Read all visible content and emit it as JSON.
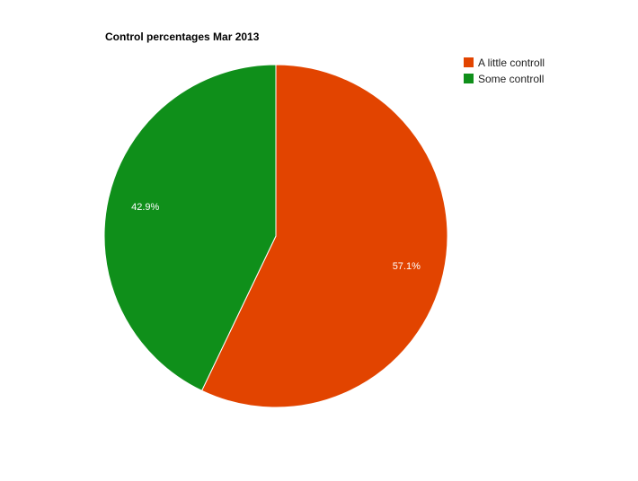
{
  "chart_data": {
    "type": "pie",
    "title": "Control percentages Mar 2013",
    "slices": [
      {
        "label": "A little controll",
        "value": 57.1,
        "display": "57.1%",
        "color": "#e24400"
      },
      {
        "label": "Some controll",
        "value": 42.9,
        "display": "42.9%",
        "color": "#0f8f1a"
      }
    ],
    "legend_position": "top-right",
    "slice_border_color": "#ffffff"
  }
}
